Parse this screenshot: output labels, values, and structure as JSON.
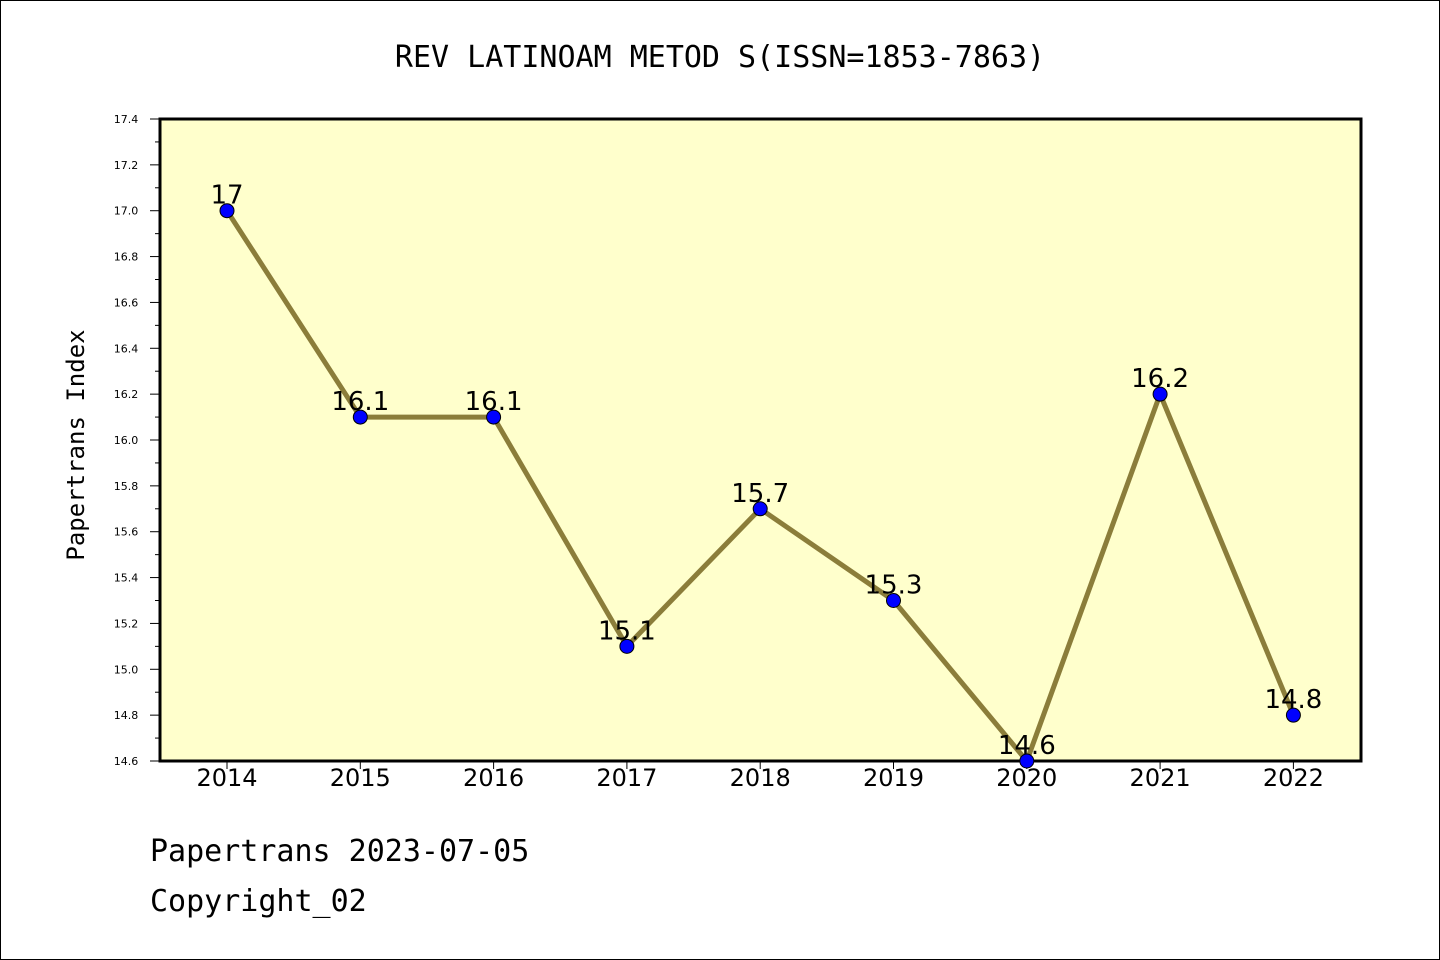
{
  "chart_data": {
    "type": "line",
    "title": "REV LATINOAM METOD S(ISSN=1853-7863)",
    "xlabel": "",
    "ylabel": "Papertrans Index",
    "categories": [
      "2014",
      "2015",
      "2016",
      "2017",
      "2018",
      "2019",
      "2020",
      "2021",
      "2022"
    ],
    "values": [
      17.0,
      16.1,
      16.1,
      15.1,
      15.7,
      15.3,
      14.6,
      16.2,
      14.8
    ],
    "data_labels": [
      "17",
      "16.1",
      "16.1",
      "15.1",
      "15.7",
      "15.3",
      "14.6",
      "16.2",
      "14.8"
    ],
    "ylim": [
      14.6,
      17.4
    ],
    "yticks": [
      "14.6",
      "14.8",
      "15.0",
      "15.2",
      "15.4",
      "15.6",
      "15.8",
      "16.0",
      "16.2",
      "16.4",
      "16.6",
      "16.8",
      "17.0",
      "17.2",
      "17.4"
    ],
    "grid": false,
    "colors": {
      "plot_background": "#ffffcc",
      "line": "#8b7d3a",
      "marker": "#0000ff"
    }
  },
  "footer": {
    "line1": "Papertrans 2023-07-05",
    "line2": "Copyright_02"
  }
}
